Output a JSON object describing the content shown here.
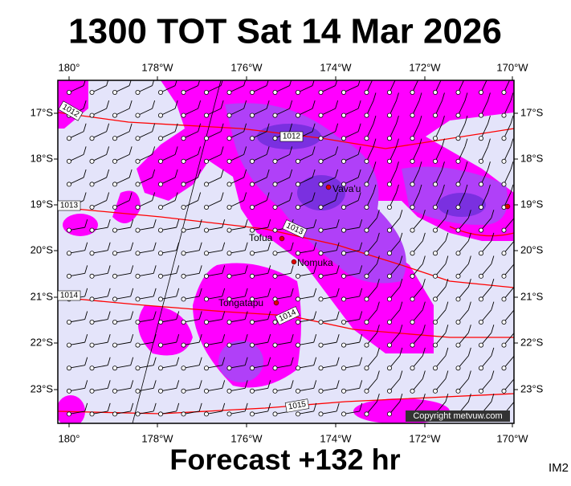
{
  "header": {
    "title": "1300 TOT Sat 14 Mar 2026"
  },
  "footer": {
    "forecast": "Forecast +132 hr",
    "code": "IM2"
  },
  "map": {
    "longitude_labels": [
      "180°",
      "178°W",
      "176°W",
      "174°W",
      "172°W",
      "170°W"
    ],
    "latitude_labels": [
      "17°S",
      "18°S",
      "19°S",
      "20°S",
      "21°S",
      "22°S",
      "23°S"
    ],
    "places": [
      "Vava'u",
      "Tofua",
      "Nomuka",
      "Tongatapu"
    ],
    "isobar_labels": [
      "1012",
      "1012",
      "1013",
      "1013",
      "1014",
      "1014",
      "1015"
    ],
    "copyright": "Copyright metvuw.com"
  }
}
